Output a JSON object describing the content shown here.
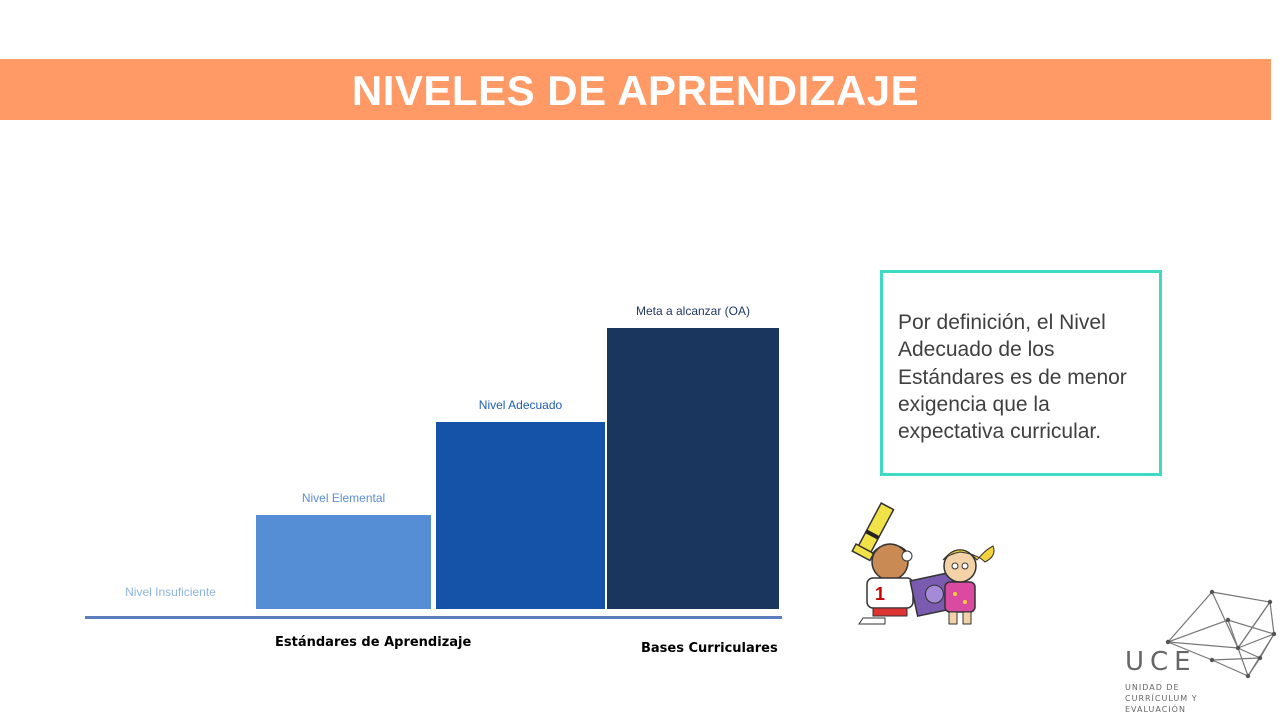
{
  "slide": {
    "title": "NIVELES DE APRENDIZAJE",
    "callout_text": "Por definición, el Nivel Adecuado de los Estándares es de menor exigencia que la expectativa curricular."
  },
  "chart_data": {
    "type": "bar",
    "categories": [
      "Nivel Insuficiente",
      "Nivel Elemental",
      "Nivel Adecuado",
      "Meta a alcanzar (OA)"
    ],
    "values": [
      0,
      1,
      2,
      3
    ],
    "colors": [
      "#ffffff",
      "#558ed5",
      "#1553a8",
      "#1a365e"
    ],
    "label_colors": [
      "#8eb4e3",
      "#5b8fd6",
      "#1f5fad",
      "#1f3864"
    ],
    "group_labels": [
      {
        "text": "Estándares de Aprendizaje",
        "color": "#1f4e8c"
      },
      {
        "text": "Bases Curriculares",
        "color": "#1f3864"
      }
    ],
    "title": "",
    "xlabel": "",
    "ylabel": ""
  },
  "logo": {
    "acronym": "UCE",
    "line1": "UNIDAD DE",
    "line2": "CURRÍCULUM Y",
    "line3": "EVALUACIÓN"
  },
  "icons": [
    "children-telescope-clipart",
    "network-logo-icon"
  ]
}
